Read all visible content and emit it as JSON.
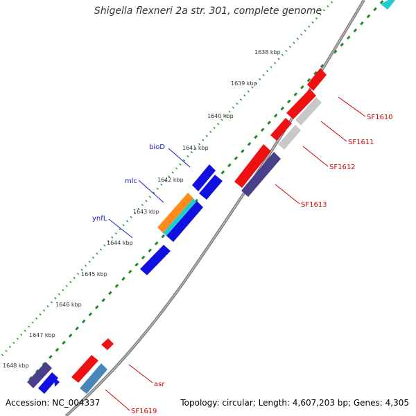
{
  "title": "Shigella flexneri 2a str. 301, complete genome",
  "accession_label": "Accession: NC_004337",
  "summary_label": "Topology: circular; Length: 4,607,203 bp; Genes: 4,305",
  "ruler_labels": [
    "1638 kbp",
    "1639 kbp",
    "1640 kbp",
    "1641 kbp",
    "1642 kbp",
    "1643 kbp",
    "1644 kbp",
    "1645 kbp",
    "1646 kbp",
    "1647 kbp",
    "1648 kbp"
  ],
  "left_gene_labels": [
    "bioD",
    "mlc",
    "ynfL"
  ],
  "right_gene_labels": [
    "SF1610",
    "SF1611",
    "SF1612",
    "SF1613",
    "asr",
    "SF1619"
  ],
  "colors": {
    "backbone": "#888888",
    "forward_ticks": "#1f9a2a",
    "reverse_ticks": "#1f8a2a",
    "left_label_color": "#1a1acc",
    "right_label_color": "#cc0000",
    "gene_blue": "#1010e0",
    "gene_red": "#ee1111",
    "gene_gray": "#c8c8c8",
    "gene_purple": "#4a3f8a",
    "gene_steel": "#4a86b8",
    "gene_orange": "#ff8c1a",
    "gene_cyan": "#22cccc"
  }
}
